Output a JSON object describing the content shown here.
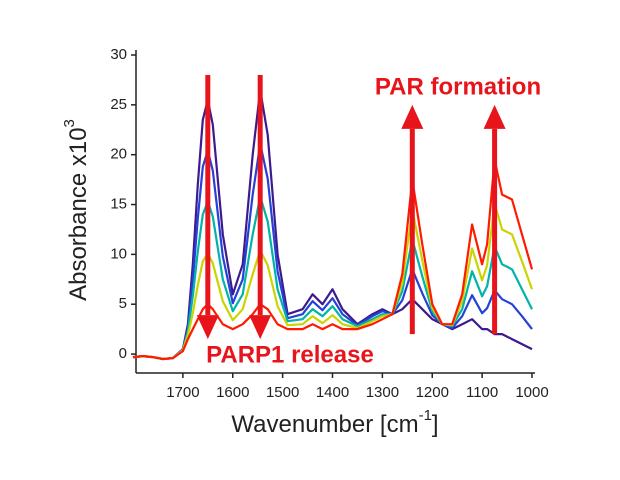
{
  "chart_data": {
    "type": "line",
    "y_label": "Absorbance x10",
    "y_label_sup": "3",
    "x_label": "Wavenumber [cm",
    "x_label_sup": "-1",
    "x_label_end": "]",
    "annotations": [
      "PAR formation",
      "PARP1 release"
    ],
    "arrow_color": "#e8141b",
    "arrows": [
      {
        "x": 1650,
        "from": 28,
        "to": 1.5
      },
      {
        "x": 1545,
        "from": 28,
        "to": 1.5
      },
      {
        "x": 1240,
        "from": 2,
        "to": 25
      },
      {
        "x": 1075,
        "from": 2,
        "to": 25
      }
    ],
    "xlim": [
      1800,
      1000
    ],
    "ylim": [
      -2,
      30
    ],
    "xticks": [
      1700,
      1600,
      1500,
      1400,
      1300,
      1200,
      1100,
      1000
    ],
    "yticks": [
      0,
      5,
      10,
      15,
      20,
      25,
      30
    ],
    "x": [
      1800,
      1780,
      1760,
      1740,
      1720,
      1700,
      1690,
      1680,
      1670,
      1660,
      1650,
      1640,
      1620,
      1600,
      1580,
      1560,
      1545,
      1530,
      1510,
      1490,
      1460,
      1440,
      1420,
      1400,
      1380,
      1350,
      1320,
      1300,
      1280,
      1260,
      1240,
      1220,
      1200,
      1180,
      1160,
      1140,
      1120,
      1100,
      1090,
      1075,
      1060,
      1040,
      1020,
      1000
    ],
    "series": [
      {
        "color": "#3d1a8e",
        "values": [
          -0.3,
          -0.2,
          -0.3,
          -0.5,
          -0.4,
          0.5,
          3,
          9,
          17,
          23.5,
          25.5,
          23,
          12,
          6,
          9,
          20,
          26.5,
          22,
          10,
          4,
          4.5,
          6,
          5,
          6.5,
          4.5,
          3,
          4,
          4.5,
          4,
          4.5,
          5.5,
          4.5,
          3.5,
          3,
          2.5,
          3,
          3.5,
          2.5,
          2.5,
          2,
          2,
          1.5,
          1,
          0.5
        ]
      },
      {
        "color": "#2541d6",
        "values": [
          -0.3,
          -0.2,
          -0.3,
          -0.5,
          -0.4,
          0.5,
          2.6,
          7.4,
          13.6,
          18.8,
          20.4,
          18.4,
          9.8,
          5.1,
          7.5,
          16,
          21.1,
          17.6,
          8.3,
          3.6,
          4,
          5.3,
          4.4,
          5.6,
          4,
          2.9,
          3.8,
          4.3,
          4,
          5.4,
          8.5,
          6.1,
          3.9,
          3,
          2.6,
          3.8,
          5.9,
          4.1,
          4.6,
          6.4,
          5.5,
          5,
          3.8,
          2.5
        ]
      },
      {
        "color": "#00b4a8",
        "values": [
          -0.3,
          -0.2,
          -0.3,
          -0.5,
          -0.4,
          0.4,
          2.3,
          5.8,
          10.3,
          14,
          15.3,
          13.8,
          7.5,
          4.3,
          6,
          12,
          15.8,
          13.3,
          6.5,
          3.3,
          3.5,
          4.5,
          3.8,
          4.8,
          3.5,
          2.8,
          3.5,
          4,
          4,
          6.3,
          11.5,
          7.8,
          4.3,
          3,
          2.8,
          4.5,
          8.3,
          5.8,
          6.8,
          10.8,
          9,
          8.5,
          6.5,
          4.5
        ]
      },
      {
        "color": "#c9d400",
        "values": [
          -0.3,
          -0.2,
          -0.3,
          -0.5,
          -0.4,
          0.4,
          1.9,
          4.1,
          6.9,
          9.3,
          10.1,
          9.1,
          5.3,
          3.4,
          4.5,
          8,
          10.4,
          8.9,
          4.8,
          2.9,
          3,
          3.8,
          3.1,
          3.9,
          3,
          2.6,
          3.3,
          3.8,
          4,
          7.1,
          14.5,
          9.4,
          4.6,
          3,
          2.9,
          5.3,
          10.6,
          7.4,
          8.9,
          15.1,
          12.5,
          12,
          9.3,
          6.5
        ]
      },
      {
        "color": "#ff1a00",
        "values": [
          -0.3,
          -0.2,
          -0.3,
          -0.5,
          -0.4,
          0.3,
          1.5,
          2.5,
          3.5,
          4.5,
          5,
          4.5,
          3,
          2.5,
          3,
          4,
          5,
          4.5,
          3,
          2.5,
          2.5,
          3,
          2.5,
          3,
          2.5,
          2.5,
          3,
          3.5,
          4,
          8,
          17.5,
          11,
          5,
          3,
          3,
          6,
          13,
          9,
          11,
          19.5,
          16,
          15.5,
          12,
          8.5
        ]
      }
    ]
  }
}
